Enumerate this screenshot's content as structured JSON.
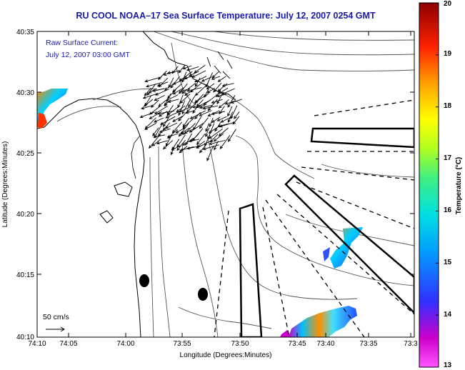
{
  "title": "RU COOL  NOAA–17  Sea Surface Temperature:  July 12, 2007 0254 GMT",
  "current_label_line1": "Raw Surface Current:",
  "current_label_line2": "July 12, 2007 03:00 GMT",
  "scale_label": "50 cm/s",
  "x_axis_label": "Longitude (Degrees:Minutes)",
  "y_axis_label": "Latitude (Degrees:Minutes)",
  "x_ticks": [
    "74:10",
    "74:05",
    "74:00",
    "73:55",
    "73:50",
    "73:45",
    "73:40",
    "73:35",
    "73:3"
  ],
  "y_ticks": [
    "40:35",
    "40:30",
    "40:25",
    "40:20",
    "40:15",
    "40:10"
  ],
  "colorbar": {
    "label": "Temperature (°C)",
    "ticks": [
      "20",
      "19",
      "18",
      "17",
      "16",
      "15",
      "14",
      "13"
    ],
    "min": 13,
    "max": 20,
    "colors": [
      "#cc00cc",
      "#3030ff",
      "#00c8ff",
      "#20e0a0",
      "#a0ff30",
      "#ffff00",
      "#ff9900",
      "#ff2200",
      "#9b0000"
    ]
  }
}
